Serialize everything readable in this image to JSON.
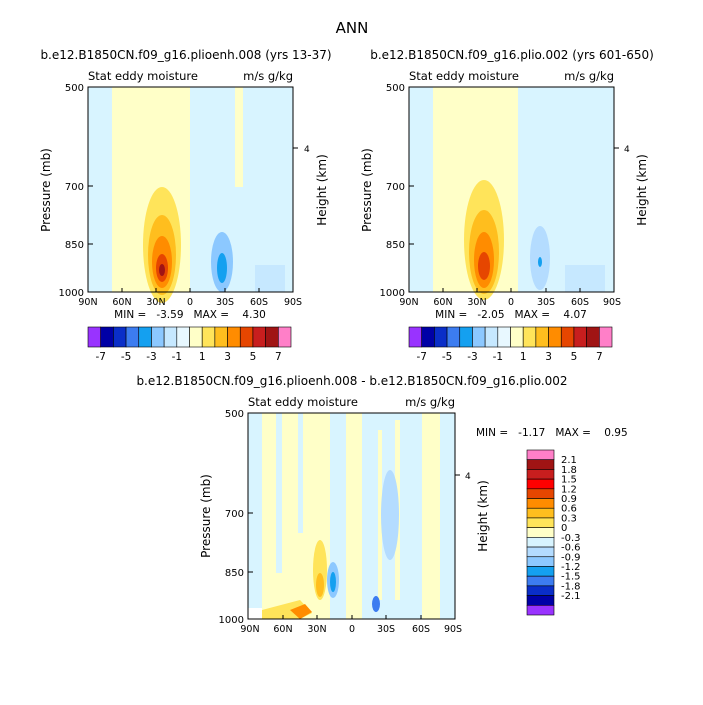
{
  "figure": {
    "main_title": "ANN"
  },
  "chart_data": [
    {
      "type": "heatmap",
      "title": "b.e12.B1850CN.f09_g16.plioenh.008 (yrs 13-37)",
      "left_label": "Stat eddy moisture",
      "right_label": "m/s g/kg",
      "ylabel": "Pressure (mb)",
      "y2label": "Height (km)",
      "x_ticks": [
        "90N",
        "60N",
        "30N",
        "0",
        "30S",
        "60S",
        "90S"
      ],
      "y_ticks": [
        "500",
        "700",
        "850",
        "1000"
      ],
      "y2_ticks": [
        "4"
      ],
      "stats_text": "MIN =   -3.59   MAX =    4.30",
      "min": -3.59,
      "max": 4.3,
      "features": [
        {
          "kind": "positive-core",
          "lat": 30,
          "p_top": 760,
          "p_bottom": 1000,
          "peak": 4.3
        },
        {
          "kind": "negative-core",
          "lat": -25,
          "p_top": 820,
          "p_bottom": 1000,
          "peak": -3.59
        }
      ]
    },
    {
      "type": "heatmap",
      "title": "b.e12.B1850CN.f09_g16.plio.002 (yrs 601-650)",
      "left_label": "Stat eddy moisture",
      "right_label": "m/s g/kg",
      "ylabel": "Pressure (mb)",
      "y2label": "Height (km)",
      "x_ticks": [
        "90N",
        "60N",
        "30N",
        "0",
        "30S",
        "60S",
        "90S"
      ],
      "y_ticks": [
        "500",
        "700",
        "850",
        "1000"
      ],
      "y2_ticks": [
        "4"
      ],
      "stats_text": "MIN =   -2.05   MAX =    4.07",
      "min": -2.05,
      "max": 4.07,
      "features": [
        {
          "kind": "positive-core",
          "lat": 30,
          "p_top": 740,
          "p_bottom": 1000,
          "peak": 4.07
        },
        {
          "kind": "negative-core",
          "lat": -25,
          "p_top": 820,
          "p_bottom": 1000,
          "peak": -2.05
        }
      ]
    },
    {
      "type": "heatmap",
      "title": "b.e12.B1850CN.f09_g16.plioenh.008 - b.e12.B1850CN.f09_g16.plio.002",
      "left_label": "Stat eddy moisture",
      "right_label": "m/s g/kg",
      "ylabel": "Pressure (mb)",
      "y2label": "Height (km)",
      "x_ticks": [
        "90N",
        "60N",
        "30N",
        "0",
        "30S",
        "60S",
        "90S"
      ],
      "y_ticks": [
        "500",
        "700",
        "850",
        "1000"
      ],
      "y2_ticks": [
        "4"
      ],
      "stats_text": "MIN =   -1.17   MAX =    0.95",
      "min": -1.17,
      "max": 0.95
    }
  ],
  "colorbars": {
    "top_levels": [
      "-7",
      "-5",
      "-3",
      "-1",
      "1",
      "3",
      "5",
      "7"
    ],
    "top_colors": [
      "#9933ff",
      "#0000a6",
      "#0a2ec8",
      "#3c7cf0",
      "#14a0f0",
      "#8cc8ff",
      "#c6e8ff",
      "#e8f8ff",
      "#ffffc8",
      "#ffe45a",
      "#ffbe1e",
      "#ff8c00",
      "#e64600",
      "#c81e1e",
      "#a01414",
      "#ff7fc8"
    ],
    "diff_levels": [
      "2.1",
      "1.8",
      "1.5",
      "1.2",
      "0.9",
      "0.6",
      "0.3",
      "0",
      "-0.3",
      "-0.6",
      "-0.9",
      "-1.2",
      "-1.5",
      "-1.8",
      "-2.1"
    ],
    "diff_colors": [
      "#ff7fc8",
      "#a01414",
      "#c81e1e",
      "#ff0000",
      "#e64600",
      "#ff8c00",
      "#ffbe1e",
      "#ffe45a",
      "#ffffc8",
      "#d8f4ff",
      "#b4dcff",
      "#8cc8ff",
      "#14a0f0",
      "#3c7cf0",
      "#0a2ec8",
      "#0000a6",
      "#9933ff"
    ]
  }
}
